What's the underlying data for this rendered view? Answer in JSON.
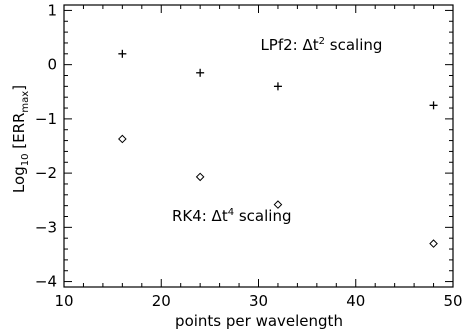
{
  "chart_data": {
    "type": "scatter",
    "title": "",
    "xlabel": "points per wavelength",
    "ylabel": {
      "base": "Log",
      "log_sub": "10",
      "open": " [ERR",
      "sub": "max",
      "close": "]"
    },
    "xlim": [
      10,
      50
    ],
    "ylim": [
      -4.1,
      1.1
    ],
    "xticks": [
      10,
      20,
      30,
      40,
      50
    ],
    "xtick_labels": [
      "10",
      "20",
      "30",
      "40",
      "50"
    ],
    "yticks": [
      -4,
      -3,
      -2,
      -1,
      0,
      1
    ],
    "ytick_labels": [
      "−4",
      "−3",
      "−2",
      "−1",
      "0",
      "1"
    ],
    "grid": false,
    "series": [
      {
        "marker": "plus",
        "x": [
          16,
          24,
          32,
          48
        ],
        "y": [
          0.2,
          -0.15,
          -0.4,
          -0.75
        ]
      },
      {
        "marker": "diamond",
        "x": [
          16,
          24,
          32,
          48
        ],
        "y": [
          -1.37,
          -2.07,
          -2.58,
          -3.3
        ]
      }
    ],
    "annotations": [
      {
        "id": "lpf2",
        "prefix": "LPf2: Δt",
        "sup": "2",
        "suffix": " scaling",
        "x": 30.2,
        "y": 0.27
      },
      {
        "id": "rk4",
        "prefix": "RK4: Δt",
        "sup": "4",
        "suffix": " scaling",
        "x": 21.1,
        "y": -2.88
      }
    ]
  }
}
